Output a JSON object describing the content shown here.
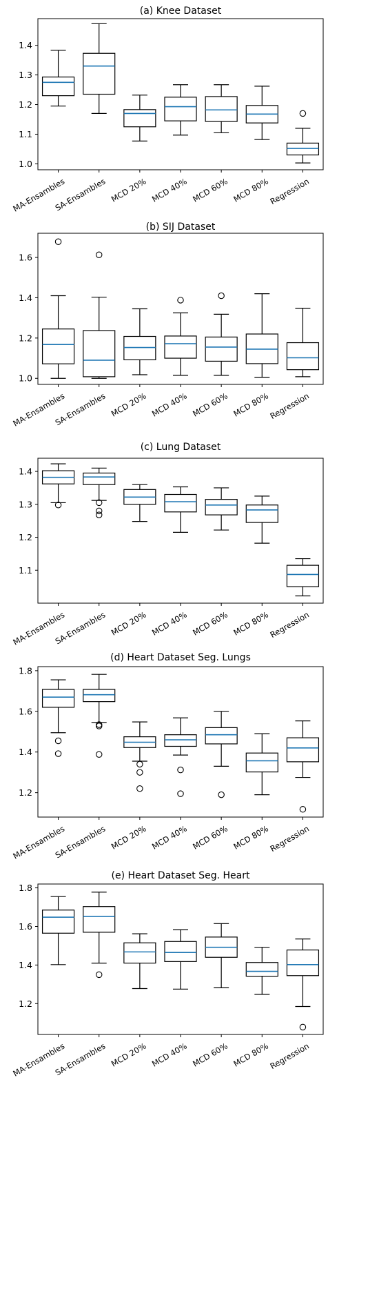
{
  "chart_data": [
    {
      "type": "box",
      "title": "(a) Knee Dataset",
      "categories": [
        "MA-Ensambles",
        "SA-Ensambles",
        "MCD 20%",
        "MCD 40%",
        "MCD 60%",
        "MCD 80%",
        "Regression"
      ],
      "yticks": [
        "1.0",
        "1.1",
        "1.2",
        "1.3",
        "1.4"
      ],
      "ylim": [
        0.98,
        1.49
      ],
      "grid": false,
      "boxes": [
        {
          "whislo": 1.195,
          "q1": 1.23,
          "med": 1.275,
          "q3": 1.293,
          "whishi": 1.383,
          "fliers": []
        },
        {
          "whislo": 1.17,
          "q1": 1.235,
          "med": 1.33,
          "q3": 1.373,
          "whishi": 1.473,
          "fliers": []
        },
        {
          "whislo": 1.077,
          "q1": 1.125,
          "med": 1.17,
          "q3": 1.183,
          "whishi": 1.232,
          "fliers": []
        },
        {
          "whislo": 1.097,
          "q1": 1.145,
          "med": 1.193,
          "q3": 1.225,
          "whishi": 1.267,
          "fliers": []
        },
        {
          "whislo": 1.105,
          "q1": 1.143,
          "med": 1.182,
          "q3": 1.227,
          "whishi": 1.267,
          "fliers": []
        },
        {
          "whislo": 1.082,
          "q1": 1.138,
          "med": 1.168,
          "q3": 1.197,
          "whishi": 1.262,
          "fliers": []
        },
        {
          "whislo": 1.003,
          "q1": 1.03,
          "med": 1.052,
          "q3": 1.07,
          "whishi": 1.12,
          "fliers": [
            1.17
          ]
        }
      ]
    },
    {
      "type": "box",
      "title": "(b) SIJ Dataset",
      "categories": [
        "MA-Ensambles",
        "SA-Ensambles",
        "MCD 20%",
        "MCD 40%",
        "MCD 60%",
        "MCD 80%",
        "Regression"
      ],
      "yticks": [
        "1.0",
        "1.2",
        "1.4",
        "1.6"
      ],
      "ylim": [
        0.97,
        1.72
      ],
      "grid": false,
      "boxes": [
        {
          "whislo": 1.0,
          "q1": 1.072,
          "med": 1.168,
          "q3": 1.245,
          "whishi": 1.41,
          "fliers": [
            1.678
          ]
        },
        {
          "whislo": 1.0,
          "q1": 1.008,
          "med": 1.09,
          "q3": 1.237,
          "whishi": 1.403,
          "fliers": [
            1.613
          ]
        },
        {
          "whislo": 1.018,
          "q1": 1.092,
          "med": 1.153,
          "q3": 1.208,
          "whishi": 1.345,
          "fliers": []
        },
        {
          "whislo": 1.015,
          "q1": 1.1,
          "med": 1.172,
          "q3": 1.21,
          "whishi": 1.325,
          "fliers": [
            1.388
          ]
        },
        {
          "whislo": 1.015,
          "q1": 1.085,
          "med": 1.155,
          "q3": 1.205,
          "whishi": 1.318,
          "fliers": [
            1.41
          ]
        },
        {
          "whislo": 1.005,
          "q1": 1.073,
          "med": 1.145,
          "q3": 1.22,
          "whishi": 1.42,
          "fliers": []
        },
        {
          "whislo": 1.008,
          "q1": 1.043,
          "med": 1.102,
          "q3": 1.177,
          "whishi": 1.348,
          "fliers": []
        }
      ]
    },
    {
      "type": "box",
      "title": "(c) Lung Dataset",
      "categories": [
        "MA-Ensambles",
        "SA-Ensambles",
        "MCD 20%",
        "MCD 40%",
        "MCD 60%",
        "MCD 80%",
        "Regression"
      ],
      "yticks": [
        "1.1",
        "1.2",
        "1.3",
        "1.4"
      ],
      "ylim": [
        1.0,
        1.44
      ],
      "grid": false,
      "boxes": [
        {
          "whislo": 1.305,
          "q1": 1.362,
          "med": 1.382,
          "q3": 1.402,
          "whishi": 1.423,
          "fliers": [
            1.298
          ]
        },
        {
          "whislo": 1.312,
          "q1": 1.36,
          "med": 1.383,
          "q3": 1.395,
          "whishi": 1.41,
          "fliers": [
            1.305,
            1.28,
            1.268
          ]
        },
        {
          "whislo": 1.248,
          "q1": 1.3,
          "med": 1.322,
          "q3": 1.345,
          "whishi": 1.36,
          "fliers": []
        },
        {
          "whislo": 1.215,
          "q1": 1.277,
          "med": 1.308,
          "q3": 1.33,
          "whishi": 1.353,
          "fliers": []
        },
        {
          "whislo": 1.222,
          "q1": 1.268,
          "med": 1.298,
          "q3": 1.315,
          "whishi": 1.35,
          "fliers": []
        },
        {
          "whislo": 1.182,
          "q1": 1.245,
          "med": 1.283,
          "q3": 1.298,
          "whishi": 1.325,
          "fliers": []
        },
        {
          "whislo": 1.022,
          "q1": 1.05,
          "med": 1.087,
          "q3": 1.115,
          "whishi": 1.135,
          "fliers": []
        }
      ]
    },
    {
      "type": "box",
      "title": "(d) Heart Dataset Seg. Lungs",
      "categories": [
        "MA-Ensambles",
        "SA-Ensambles",
        "MCD 20%",
        "MCD 40%",
        "MCD 60%",
        "MCD 80%",
        "Regression"
      ],
      "yticks": [
        "1.2",
        "1.4",
        "1.6",
        "1.8"
      ],
      "ylim": [
        1.08,
        1.82
      ],
      "grid": false,
      "boxes": [
        {
          "whislo": 1.495,
          "q1": 1.62,
          "med": 1.67,
          "q3": 1.708,
          "whishi": 1.755,
          "fliers": [
            1.455,
            1.392
          ]
        },
        {
          "whislo": 1.545,
          "q1": 1.648,
          "med": 1.682,
          "q3": 1.708,
          "whishi": 1.782,
          "fliers": [
            1.535,
            1.528,
            1.388
          ]
        },
        {
          "whislo": 1.355,
          "q1": 1.422,
          "med": 1.448,
          "q3": 1.475,
          "whishi": 1.548,
          "fliers": [
            1.34,
            1.3,
            1.22
          ]
        },
        {
          "whislo": 1.385,
          "q1": 1.428,
          "med": 1.46,
          "q3": 1.485,
          "whishi": 1.568,
          "fliers": [
            1.312,
            1.195
          ]
        },
        {
          "whislo": 1.33,
          "q1": 1.44,
          "med": 1.485,
          "q3": 1.52,
          "whishi": 1.6,
          "fliers": [
            1.19
          ]
        },
        {
          "whislo": 1.19,
          "q1": 1.302,
          "med": 1.357,
          "q3": 1.395,
          "whishi": 1.49,
          "fliers": []
        },
        {
          "whislo": 1.275,
          "q1": 1.352,
          "med": 1.42,
          "q3": 1.47,
          "whishi": 1.553,
          "fliers": [
            1.118
          ]
        }
      ]
    },
    {
      "type": "box",
      "title": "(e) Heart Dataset Seg. Heart",
      "categories": [
        "MA-Ensambles",
        "SA-Ensambles",
        "MCD 20%",
        "MCD 40%",
        "MCD 60%",
        "MCD 80%",
        "Regression"
      ],
      "yticks": [
        "1.2",
        "1.4",
        "1.6",
        "1.8"
      ],
      "ylim": [
        1.04,
        1.82
      ],
      "grid": false,
      "boxes": [
        {
          "whislo": 1.402,
          "q1": 1.565,
          "med": 1.648,
          "q3": 1.685,
          "whishi": 1.755,
          "fliers": []
        },
        {
          "whislo": 1.41,
          "q1": 1.57,
          "med": 1.652,
          "q3": 1.703,
          "whishi": 1.778,
          "fliers": [
            1.35
          ]
        },
        {
          "whislo": 1.278,
          "q1": 1.41,
          "med": 1.468,
          "q3": 1.515,
          "whishi": 1.562,
          "fliers": []
        },
        {
          "whislo": 1.275,
          "q1": 1.418,
          "med": 1.465,
          "q3": 1.522,
          "whishi": 1.583,
          "fliers": []
        },
        {
          "whislo": 1.282,
          "q1": 1.44,
          "med": 1.492,
          "q3": 1.545,
          "whishi": 1.615,
          "fliers": []
        },
        {
          "whislo": 1.248,
          "q1": 1.342,
          "med": 1.367,
          "q3": 1.413,
          "whishi": 1.492,
          "fliers": []
        },
        {
          "whislo": 1.185,
          "q1": 1.345,
          "med": 1.402,
          "q3": 1.478,
          "whishi": 1.535,
          "fliers": [
            1.078
          ]
        }
      ]
    }
  ]
}
